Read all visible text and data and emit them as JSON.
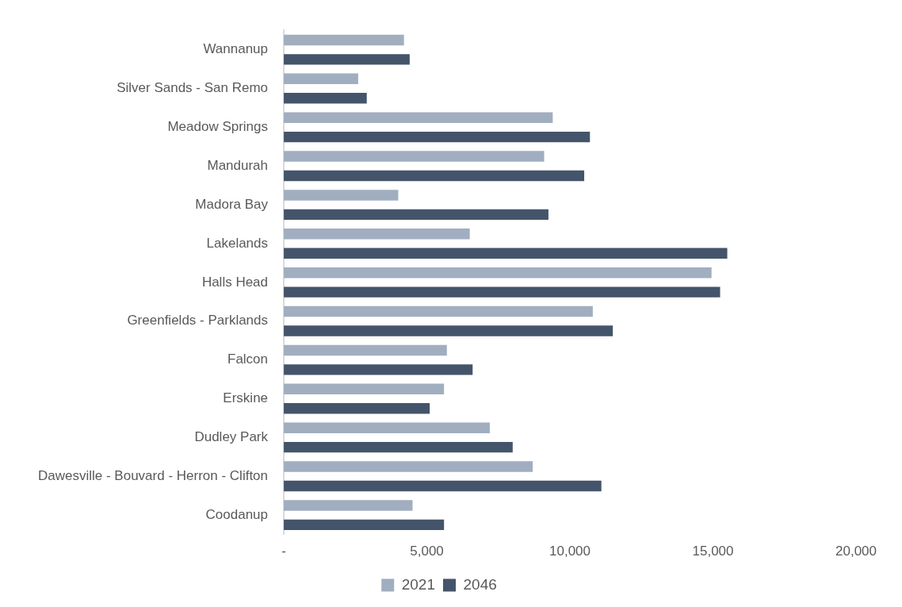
{
  "chart_data": {
    "type": "bar",
    "orientation": "horizontal",
    "categories": [
      "Wannanup",
      "Silver Sands - San Remo",
      "Meadow Springs",
      "Mandurah",
      "Madora Bay",
      "Lakelands",
      "Halls Head",
      "Greenfields - Parklands",
      "Falcon",
      "Erskine",
      "Dudley Park",
      "Dawesville - Bouvard - Herron - Clifton",
      "Coodanup"
    ],
    "series": [
      {
        "name": "2021",
        "color": "#a0aec0",
        "values": [
          4200,
          2600,
          9400,
          9100,
          4000,
          6500,
          14950,
          10800,
          5700,
          5600,
          7200,
          8700,
          4500
        ]
      },
      {
        "name": "2046",
        "color": "#44546a",
        "values": [
          4400,
          2900,
          10700,
          10500,
          9250,
          15500,
          15250,
          11500,
          6600,
          5100,
          8000,
          11100,
          5600
        ]
      }
    ],
    "xlim": [
      0,
      20000
    ],
    "xticks": [
      {
        "value": 0,
        "label": "-"
      },
      {
        "value": 5000,
        "label": "5,000"
      },
      {
        "value": 10000,
        "label": "10,000"
      },
      {
        "value": 15000,
        "label": "15,000"
      },
      {
        "value": 20000,
        "label": "20,000"
      }
    ],
    "grid": false,
    "legend": "bottom"
  }
}
